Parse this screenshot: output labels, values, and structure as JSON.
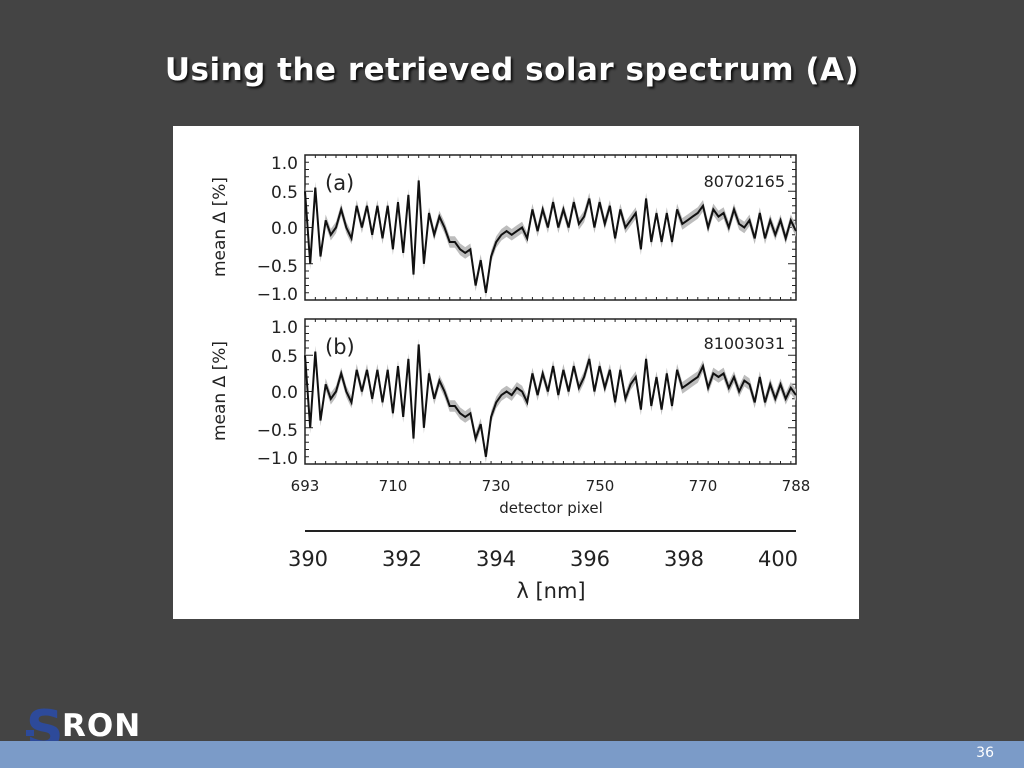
{
  "slide": {
    "title": "Using the retrieved solar spectrum (A)",
    "page_number": "36"
  },
  "logo": {
    "s": "S",
    "rest": "RON"
  },
  "colors": {
    "background": "#444444",
    "footer": "#7b9bc8",
    "line": "#111111",
    "band": "#bdbdbd"
  },
  "chart_data": [
    {
      "type": "line",
      "panel_label": "(a)",
      "id_label": "80702165",
      "ylabel": "mean Δ [%]",
      "ylim": [
        -1.0,
        1.0
      ],
      "yticks": [
        "1.0",
        "0.5",
        "0.0",
        "−0.5",
        "−1.0"
      ],
      "xlim": [
        693,
        788
      ],
      "values": [
        0.5,
        -0.5,
        0.55,
        -0.4,
        0.1,
        -0.1,
        0.0,
        0.25,
        0.0,
        -0.15,
        0.3,
        0.0,
        0.3,
        -0.1,
        0.3,
        -0.15,
        0.3,
        -0.3,
        0.35,
        -0.35,
        0.45,
        -0.65,
        0.65,
        -0.5,
        0.2,
        -0.1,
        0.15,
        0.0,
        -0.2,
        -0.2,
        -0.3,
        -0.35,
        -0.3,
        -0.8,
        -0.45,
        -0.9,
        -0.4,
        -0.2,
        -0.1,
        -0.05,
        -0.1,
        -0.05,
        0.0,
        -0.15,
        0.25,
        -0.05,
        0.25,
        0.0,
        0.35,
        0.0,
        0.25,
        0.0,
        0.35,
        0.05,
        0.15,
        0.4,
        0.0,
        0.35,
        0.05,
        0.3,
        -0.15,
        0.25,
        0.0,
        0.1,
        0.2,
        -0.3,
        0.4,
        -0.2,
        0.2,
        -0.2,
        0.2,
        -0.2,
        0.25,
        0.05,
        0.1,
        0.15,
        0.2,
        0.3,
        0.0,
        0.25,
        0.15,
        0.2,
        0.0,
        0.25,
        0.05,
        0.0,
        0.1,
        -0.15,
        0.2,
        -0.15,
        0.1,
        -0.1,
        0.1,
        -0.15,
        0.1,
        -0.05
      ],
      "band_half_width": 0.08
    },
    {
      "type": "line",
      "panel_label": "(b)",
      "id_label": "81003031",
      "ylabel": "mean Δ [%]",
      "ylim": [
        -1.0,
        1.0
      ],
      "yticks": [
        "1.0",
        "0.5",
        "0.0",
        "−0.5",
        "−1.0"
      ],
      "xlim": [
        693,
        788
      ],
      "values": [
        0.5,
        -0.5,
        0.55,
        -0.4,
        0.1,
        -0.1,
        0.0,
        0.25,
        0.0,
        -0.15,
        0.3,
        0.0,
        0.3,
        -0.1,
        0.3,
        -0.15,
        0.3,
        -0.3,
        0.35,
        -0.35,
        0.45,
        -0.65,
        0.65,
        -0.5,
        0.25,
        -0.1,
        0.15,
        0.0,
        -0.2,
        -0.2,
        -0.3,
        -0.35,
        -0.3,
        -0.65,
        -0.45,
        -0.9,
        -0.35,
        -0.15,
        -0.05,
        0.0,
        -0.05,
        0.05,
        0.0,
        -0.15,
        0.25,
        -0.05,
        0.25,
        0.0,
        0.35,
        -0.05,
        0.3,
        0.0,
        0.35,
        0.05,
        0.2,
        0.45,
        0.0,
        0.35,
        0.05,
        0.3,
        -0.15,
        0.3,
        -0.1,
        0.1,
        0.2,
        -0.25,
        0.45,
        -0.2,
        0.2,
        -0.25,
        0.25,
        -0.2,
        0.3,
        0.05,
        0.1,
        0.15,
        0.2,
        0.35,
        0.05,
        0.25,
        0.2,
        0.25,
        0.05,
        0.2,
        0.0,
        0.15,
        0.1,
        -0.15,
        0.2,
        -0.15,
        0.1,
        -0.1,
        0.1,
        -0.1,
        0.05,
        -0.05
      ],
      "band_half_width": 0.08
    }
  ],
  "pixel_axis": {
    "xlabel": "detector pixel",
    "ticks": [
      "693",
      "710",
      "730",
      "750",
      "770",
      "788"
    ],
    "tick_values": [
      693,
      710,
      730,
      750,
      770,
      788
    ]
  },
  "wavelength_axis": {
    "xlabel": "λ [nm]",
    "ticks": [
      "390",
      "392",
      "394",
      "396",
      "398",
      "400"
    ],
    "tick_values": [
      390,
      392,
      394,
      396,
      398,
      400
    ]
  }
}
